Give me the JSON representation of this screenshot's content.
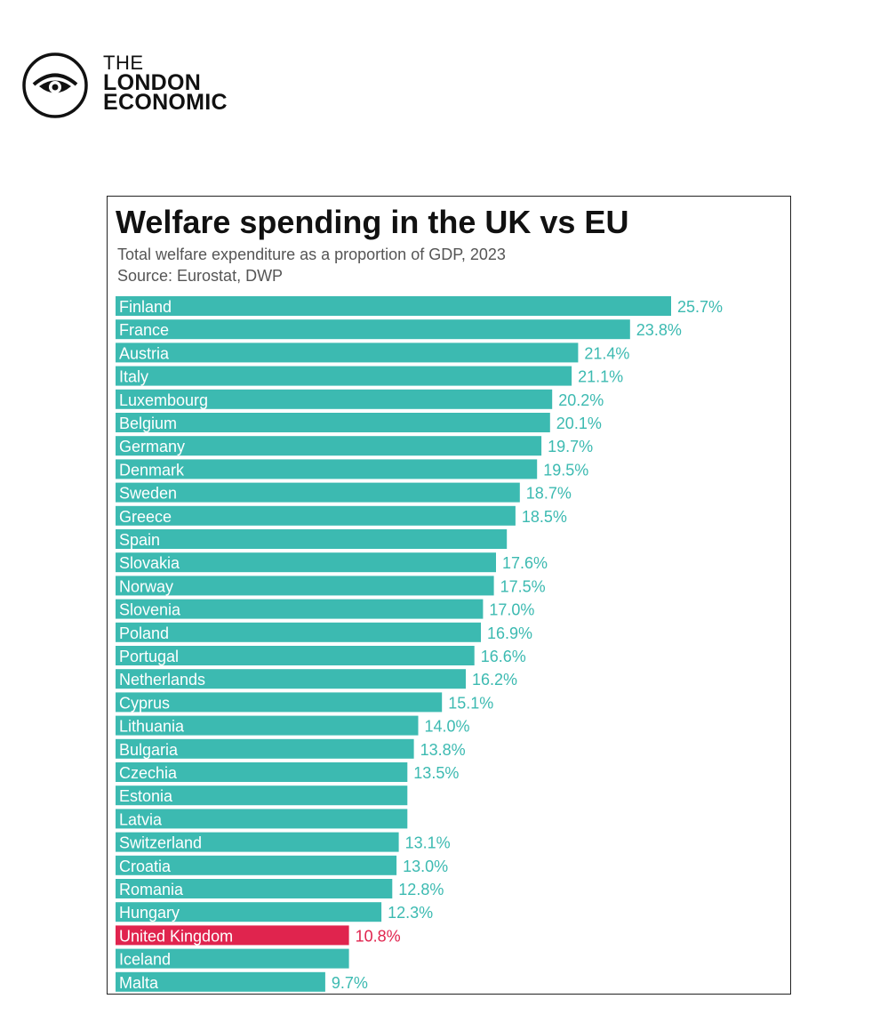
{
  "brand": {
    "line1": "THE",
    "line2": "LONDON",
    "line3": "ECONOMIC",
    "icon": "eye-icon"
  },
  "colors": {
    "bar": "#3cbab1",
    "highlight": "#e0244e",
    "value_text": "#3cbab1",
    "highlight_text": "#e0244e"
  },
  "chart_data": {
    "type": "bar",
    "orientation": "horizontal",
    "title": "Welfare spending in the UK vs EU",
    "subtitle": "Total welfare expenditure as a proportion of GDP, 2023",
    "source": "Source: Eurostat, DWP",
    "unit": "%",
    "categories": [
      "Finland",
      "France",
      "Austria",
      "Italy",
      "Luxembourg",
      "Belgium",
      "Germany",
      "Denmark",
      "Sweden",
      "Greece",
      "Spain",
      "Slovakia",
      "Norway",
      "Slovenia",
      "Poland",
      "Portugal",
      "Netherlands",
      "Cyprus",
      "Lithuania",
      "Bulgaria",
      "Czechia",
      "Estonia",
      "Latvia",
      "Switzerland",
      "Croatia",
      "Romania",
      "Hungary",
      "United Kingdom",
      "Iceland",
      "Malta"
    ],
    "values": [
      25.7,
      23.8,
      21.4,
      21.1,
      20.2,
      20.1,
      19.7,
      19.5,
      18.7,
      18.5,
      18.1,
      17.6,
      17.5,
      17.0,
      16.9,
      16.6,
      16.2,
      15.1,
      14.0,
      13.8,
      13.5,
      13.5,
      13.5,
      13.1,
      13.0,
      12.8,
      12.3,
      10.8,
      10.8,
      9.7
    ],
    "value_labels": [
      "25.7%",
      "23.8%",
      "21.4%",
      "21.1%",
      "20.2%",
      "20.1%",
      "19.7%",
      "19.5%",
      "18.7%",
      "18.5%",
      "",
      "17.6%",
      "17.5%",
      "17.0%",
      "16.9%",
      "16.6%",
      "16.2%",
      "15.1%",
      "14.0%",
      "13.8%",
      "13.5%",
      "",
      "",
      "13.1%",
      "13.0%",
      "12.8%",
      "12.3%",
      "10.8%",
      "",
      "9.7%"
    ],
    "highlight": "United Kingdom",
    "xlim": [
      0,
      25.7
    ]
  }
}
